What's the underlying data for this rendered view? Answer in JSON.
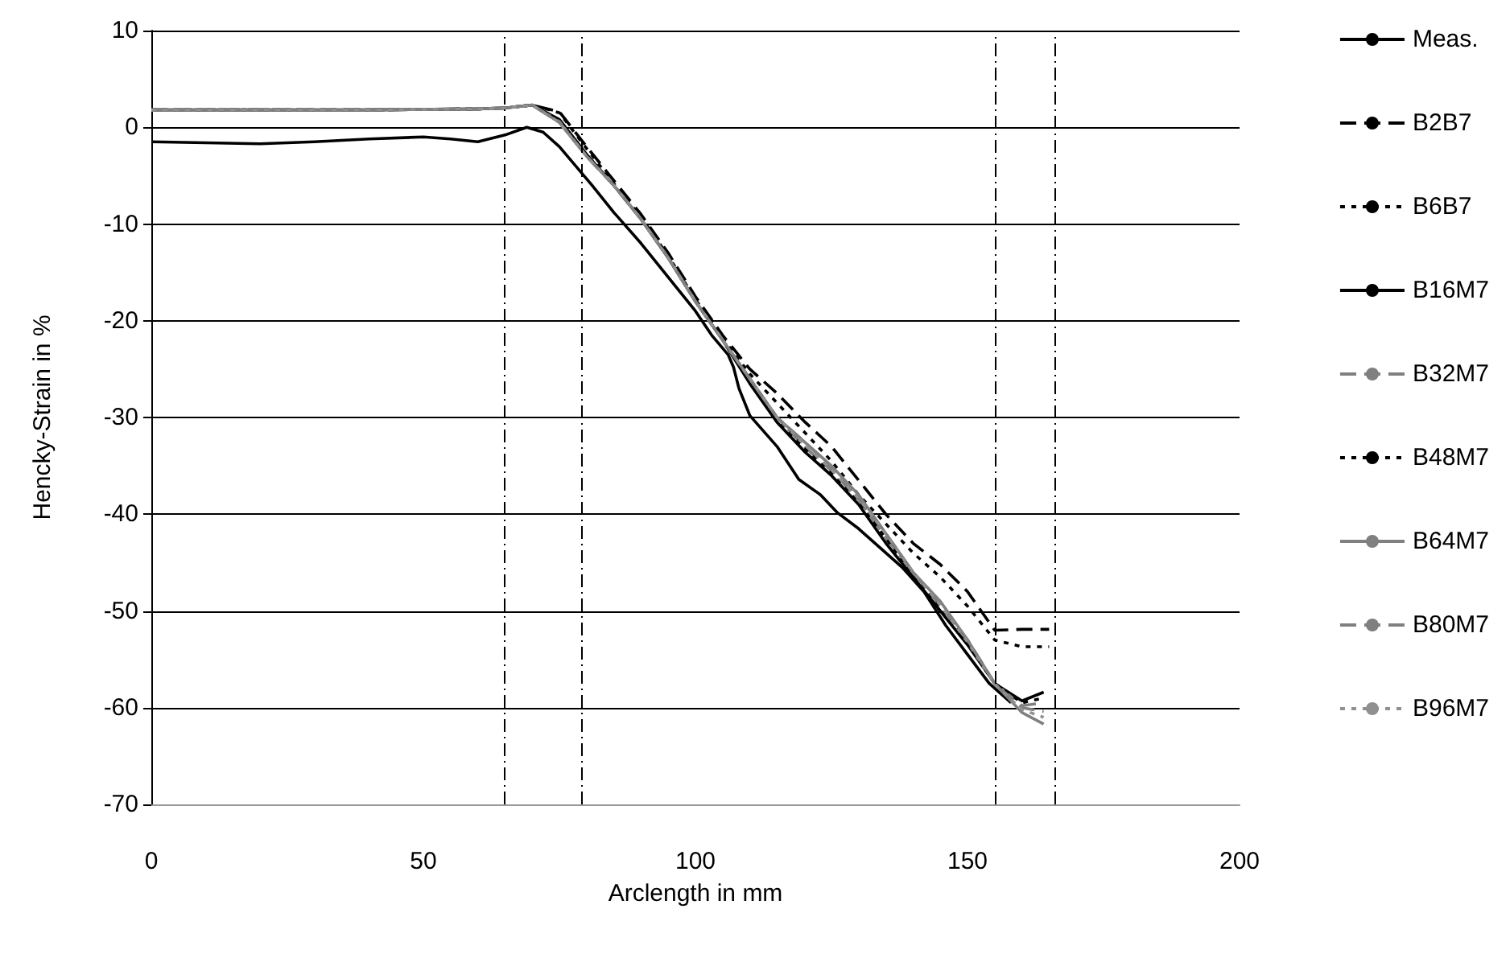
{
  "chart_data": {
    "type": "line",
    "xlabel": "Arclength in mm",
    "ylabel": "Hencky-Strain in %",
    "xlim": [
      0,
      200
    ],
    "xticks": [
      0,
      50,
      100,
      150,
      200
    ],
    "ylim": [
      -70,
      10
    ],
    "yticks": [
      -70,
      -60,
      -50,
      -40,
      -30,
      -20,
      -10,
      0,
      10
    ],
    "grid": "y",
    "legend": "right",
    "marker": "none",
    "x": [
      0,
      20,
      40,
      60,
      65,
      70,
      75,
      80,
      85,
      90,
      95,
      100,
      105,
      110,
      115,
      120,
      125,
      130,
      135,
      140,
      145,
      150,
      155,
      160,
      164
    ],
    "series": [
      {
        "name": "Meas.",
        "color": "#000000",
        "line_style": "solid",
        "x": [
          0,
          10,
          20,
          30,
          40,
          50,
          55,
          60,
          65,
          69,
          72,
          75,
          78,
          81,
          85,
          90,
          95,
          100,
          103,
          106,
          107,
          108,
          110,
          115,
          119,
          123,
          126,
          130,
          134,
          138,
          142,
          146,
          150,
          154,
          158
        ],
        "values": [
          -1.5,
          -1.6,
          -1.7,
          -1.5,
          -1.2,
          -1.0,
          -1.2,
          -1.5,
          -0.8,
          0,
          -0.5,
          -2,
          -4,
          -6,
          -8.8,
          -12,
          -15.5,
          -19,
          -21.5,
          -23.5,
          -24.8,
          -27,
          -29.8,
          -33,
          -36.4,
          -38,
          -39.8,
          -41.5,
          -43.5,
          -45.5,
          -48,
          -51.5,
          -54.5,
          -57.5,
          -59.5
        ]
      },
      {
        "name": "B2B7",
        "color": "#000000",
        "line_style": "dashed",
        "x": [
          0,
          20,
          40,
          60,
          65,
          70,
          75,
          80,
          85,
          90,
          95,
          100,
          105,
          110,
          115,
          120,
          125,
          130,
          135,
          140,
          145,
          150,
          155,
          160,
          165
        ],
        "values": [
          1.8,
          1.8,
          1.8,
          1.9,
          2.0,
          2.3,
          1.6,
          -2,
          -5.5,
          -9,
          -13,
          -17.5,
          -21.5,
          -25,
          -27.5,
          -30.4,
          -33,
          -36.5,
          -40,
          -43,
          -45.2,
          -48,
          -52,
          -51.9,
          -51.9
        ]
      },
      {
        "name": "B6B7",
        "color": "#000000",
        "line_style": "dotted",
        "x": [
          0,
          20,
          40,
          60,
          65,
          70,
          75,
          80,
          85,
          90,
          95,
          100,
          105,
          110,
          115,
          120,
          125,
          130,
          135,
          140,
          145,
          150,
          155,
          160,
          165
        ],
        "values": [
          1.8,
          1.8,
          1.8,
          1.9,
          2.0,
          2.3,
          1.5,
          -2.2,
          -5.8,
          -9.3,
          -13.3,
          -17.8,
          -21.8,
          -25.5,
          -28.5,
          -31.5,
          -34.5,
          -38,
          -41,
          -44,
          -46.5,
          -49.5,
          -53,
          -53.7,
          -53.7
        ]
      },
      {
        "name": "B16M7",
        "color": "#000000",
        "line_style": "solid",
        "values": [
          1.8,
          1.8,
          1.8,
          1.9,
          2.0,
          2.3,
          0.8,
          -2.8,
          -6,
          -9.5,
          -13.5,
          -18,
          -22,
          -26.5,
          -30.5,
          -33.5,
          -36,
          -39,
          -43,
          -46.5,
          -50,
          -53.5,
          -57.5,
          -59.3,
          -58.4
        ]
      },
      {
        "name": "B32M7",
        "color": "#808080",
        "line_style": "dashed",
        "values": [
          1.8,
          1.8,
          1.8,
          1.9,
          2.0,
          2.3,
          0.6,
          -3,
          -6,
          -9.5,
          -13.5,
          -18,
          -22,
          -26,
          -30,
          -33,
          -35.5,
          -38.5,
          -42.5,
          -46,
          -49.5,
          -53,
          -57.5,
          -59.8,
          -59.5
        ]
      },
      {
        "name": "B48M7",
        "color": "#000000",
        "line_style": "dotted",
        "values": [
          1.8,
          1.8,
          1.8,
          1.9,
          2.0,
          2.3,
          0.7,
          -2.9,
          -6,
          -9.5,
          -13.5,
          -18,
          -22,
          -26,
          -30.2,
          -33.2,
          -35.8,
          -38.8,
          -42.5,
          -46.2,
          -49.8,
          -53.2,
          -57.5,
          -59.5,
          -59
        ]
      },
      {
        "name": "B64M7",
        "color": "#808080",
        "line_style": "solid",
        "values": [
          1.8,
          1.8,
          1.8,
          1.9,
          2.0,
          2.3,
          0.5,
          -3,
          -6,
          -9.5,
          -13.5,
          -18,
          -22,
          -26,
          -30,
          -32.5,
          -35,
          -38,
          -42,
          -46,
          -49,
          -53,
          -57.5,
          -60.5,
          -61.7
        ]
      },
      {
        "name": "B80M7",
        "color": "#808080",
        "line_style": "dashed",
        "values": [
          1.8,
          1.8,
          1.8,
          1.9,
          2.0,
          2.3,
          0.5,
          -3,
          -6,
          -9.5,
          -13.5,
          -18,
          -22,
          -26,
          -30,
          -32.5,
          -35.2,
          -38.2,
          -42,
          -46,
          -49.2,
          -53,
          -57.5,
          -60,
          -60.4
        ]
      },
      {
        "name": "B96M7",
        "color": "#909090",
        "line_style": "dotted",
        "values": [
          1.8,
          1.8,
          1.8,
          1.9,
          2.0,
          2.3,
          0.5,
          -3,
          -6,
          -9.5,
          -13.5,
          -18,
          -22,
          -26,
          -30,
          -32.8,
          -35.4,
          -38.4,
          -42,
          -46,
          -49.4,
          -53.2,
          -57.6,
          -60.2,
          -61
        ]
      }
    ],
    "ref_lines": [
      {
        "axis": "x",
        "value": 65,
        "label": null,
        "color": "#000000",
        "line_style": "dashed"
      },
      {
        "axis": "x",
        "value": 79,
        "label": null,
        "color": "#000000",
        "line_style": "dashed"
      },
      {
        "axis": "x",
        "value": 155,
        "label": null,
        "color": "#000000",
        "line_style": "dashed"
      },
      {
        "axis": "x",
        "value": 166,
        "label": null,
        "color": "#000000",
        "line_style": "dashed"
      }
    ]
  }
}
